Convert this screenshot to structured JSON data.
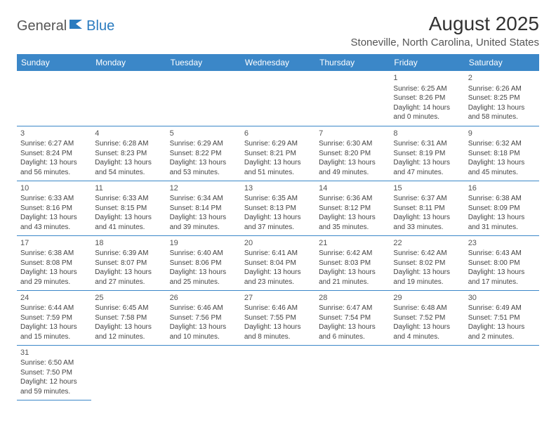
{
  "logo": {
    "word1": "General",
    "word2": "Blue"
  },
  "header": {
    "title": "August 2025",
    "subtitle": "Stoneville, North Carolina, United States"
  },
  "columns": [
    "Sunday",
    "Monday",
    "Tuesday",
    "Wednesday",
    "Thursday",
    "Friday",
    "Saturday"
  ],
  "colors": {
    "header_bg": "#3b87c8",
    "accent": "#2a7bbf"
  },
  "weeks": [
    [
      null,
      null,
      null,
      null,
      null,
      {
        "n": "1",
        "sr": "Sunrise: 6:25 AM",
        "ss": "Sunset: 8:26 PM",
        "d1": "Daylight: 14 hours",
        "d2": "and 0 minutes."
      },
      {
        "n": "2",
        "sr": "Sunrise: 6:26 AM",
        "ss": "Sunset: 8:25 PM",
        "d1": "Daylight: 13 hours",
        "d2": "and 58 minutes."
      }
    ],
    [
      {
        "n": "3",
        "sr": "Sunrise: 6:27 AM",
        "ss": "Sunset: 8:24 PM",
        "d1": "Daylight: 13 hours",
        "d2": "and 56 minutes."
      },
      {
        "n": "4",
        "sr": "Sunrise: 6:28 AM",
        "ss": "Sunset: 8:23 PM",
        "d1": "Daylight: 13 hours",
        "d2": "and 54 minutes."
      },
      {
        "n": "5",
        "sr": "Sunrise: 6:29 AM",
        "ss": "Sunset: 8:22 PM",
        "d1": "Daylight: 13 hours",
        "d2": "and 53 minutes."
      },
      {
        "n": "6",
        "sr": "Sunrise: 6:29 AM",
        "ss": "Sunset: 8:21 PM",
        "d1": "Daylight: 13 hours",
        "d2": "and 51 minutes."
      },
      {
        "n": "7",
        "sr": "Sunrise: 6:30 AM",
        "ss": "Sunset: 8:20 PM",
        "d1": "Daylight: 13 hours",
        "d2": "and 49 minutes."
      },
      {
        "n": "8",
        "sr": "Sunrise: 6:31 AM",
        "ss": "Sunset: 8:19 PM",
        "d1": "Daylight: 13 hours",
        "d2": "and 47 minutes."
      },
      {
        "n": "9",
        "sr": "Sunrise: 6:32 AM",
        "ss": "Sunset: 8:18 PM",
        "d1": "Daylight: 13 hours",
        "d2": "and 45 minutes."
      }
    ],
    [
      {
        "n": "10",
        "sr": "Sunrise: 6:33 AM",
        "ss": "Sunset: 8:16 PM",
        "d1": "Daylight: 13 hours",
        "d2": "and 43 minutes."
      },
      {
        "n": "11",
        "sr": "Sunrise: 6:33 AM",
        "ss": "Sunset: 8:15 PM",
        "d1": "Daylight: 13 hours",
        "d2": "and 41 minutes."
      },
      {
        "n": "12",
        "sr": "Sunrise: 6:34 AM",
        "ss": "Sunset: 8:14 PM",
        "d1": "Daylight: 13 hours",
        "d2": "and 39 minutes."
      },
      {
        "n": "13",
        "sr": "Sunrise: 6:35 AM",
        "ss": "Sunset: 8:13 PM",
        "d1": "Daylight: 13 hours",
        "d2": "and 37 minutes."
      },
      {
        "n": "14",
        "sr": "Sunrise: 6:36 AM",
        "ss": "Sunset: 8:12 PM",
        "d1": "Daylight: 13 hours",
        "d2": "and 35 minutes."
      },
      {
        "n": "15",
        "sr": "Sunrise: 6:37 AM",
        "ss": "Sunset: 8:11 PM",
        "d1": "Daylight: 13 hours",
        "d2": "and 33 minutes."
      },
      {
        "n": "16",
        "sr": "Sunrise: 6:38 AM",
        "ss": "Sunset: 8:09 PM",
        "d1": "Daylight: 13 hours",
        "d2": "and 31 minutes."
      }
    ],
    [
      {
        "n": "17",
        "sr": "Sunrise: 6:38 AM",
        "ss": "Sunset: 8:08 PM",
        "d1": "Daylight: 13 hours",
        "d2": "and 29 minutes."
      },
      {
        "n": "18",
        "sr": "Sunrise: 6:39 AM",
        "ss": "Sunset: 8:07 PM",
        "d1": "Daylight: 13 hours",
        "d2": "and 27 minutes."
      },
      {
        "n": "19",
        "sr": "Sunrise: 6:40 AM",
        "ss": "Sunset: 8:06 PM",
        "d1": "Daylight: 13 hours",
        "d2": "and 25 minutes."
      },
      {
        "n": "20",
        "sr": "Sunrise: 6:41 AM",
        "ss": "Sunset: 8:04 PM",
        "d1": "Daylight: 13 hours",
        "d2": "and 23 minutes."
      },
      {
        "n": "21",
        "sr": "Sunrise: 6:42 AM",
        "ss": "Sunset: 8:03 PM",
        "d1": "Daylight: 13 hours",
        "d2": "and 21 minutes."
      },
      {
        "n": "22",
        "sr": "Sunrise: 6:42 AM",
        "ss": "Sunset: 8:02 PM",
        "d1": "Daylight: 13 hours",
        "d2": "and 19 minutes."
      },
      {
        "n": "23",
        "sr": "Sunrise: 6:43 AM",
        "ss": "Sunset: 8:00 PM",
        "d1": "Daylight: 13 hours",
        "d2": "and 17 minutes."
      }
    ],
    [
      {
        "n": "24",
        "sr": "Sunrise: 6:44 AM",
        "ss": "Sunset: 7:59 PM",
        "d1": "Daylight: 13 hours",
        "d2": "and 15 minutes."
      },
      {
        "n": "25",
        "sr": "Sunrise: 6:45 AM",
        "ss": "Sunset: 7:58 PM",
        "d1": "Daylight: 13 hours",
        "d2": "and 12 minutes."
      },
      {
        "n": "26",
        "sr": "Sunrise: 6:46 AM",
        "ss": "Sunset: 7:56 PM",
        "d1": "Daylight: 13 hours",
        "d2": "and 10 minutes."
      },
      {
        "n": "27",
        "sr": "Sunrise: 6:46 AM",
        "ss": "Sunset: 7:55 PM",
        "d1": "Daylight: 13 hours",
        "d2": "and 8 minutes."
      },
      {
        "n": "28",
        "sr": "Sunrise: 6:47 AM",
        "ss": "Sunset: 7:54 PM",
        "d1": "Daylight: 13 hours",
        "d2": "and 6 minutes."
      },
      {
        "n": "29",
        "sr": "Sunrise: 6:48 AM",
        "ss": "Sunset: 7:52 PM",
        "d1": "Daylight: 13 hours",
        "d2": "and 4 minutes."
      },
      {
        "n": "30",
        "sr": "Sunrise: 6:49 AM",
        "ss": "Sunset: 7:51 PM",
        "d1": "Daylight: 13 hours",
        "d2": "and 2 minutes."
      }
    ],
    [
      {
        "n": "31",
        "sr": "Sunrise: 6:50 AM",
        "ss": "Sunset: 7:50 PM",
        "d1": "Daylight: 12 hours",
        "d2": "and 59 minutes."
      },
      null,
      null,
      null,
      null,
      null,
      null
    ]
  ]
}
